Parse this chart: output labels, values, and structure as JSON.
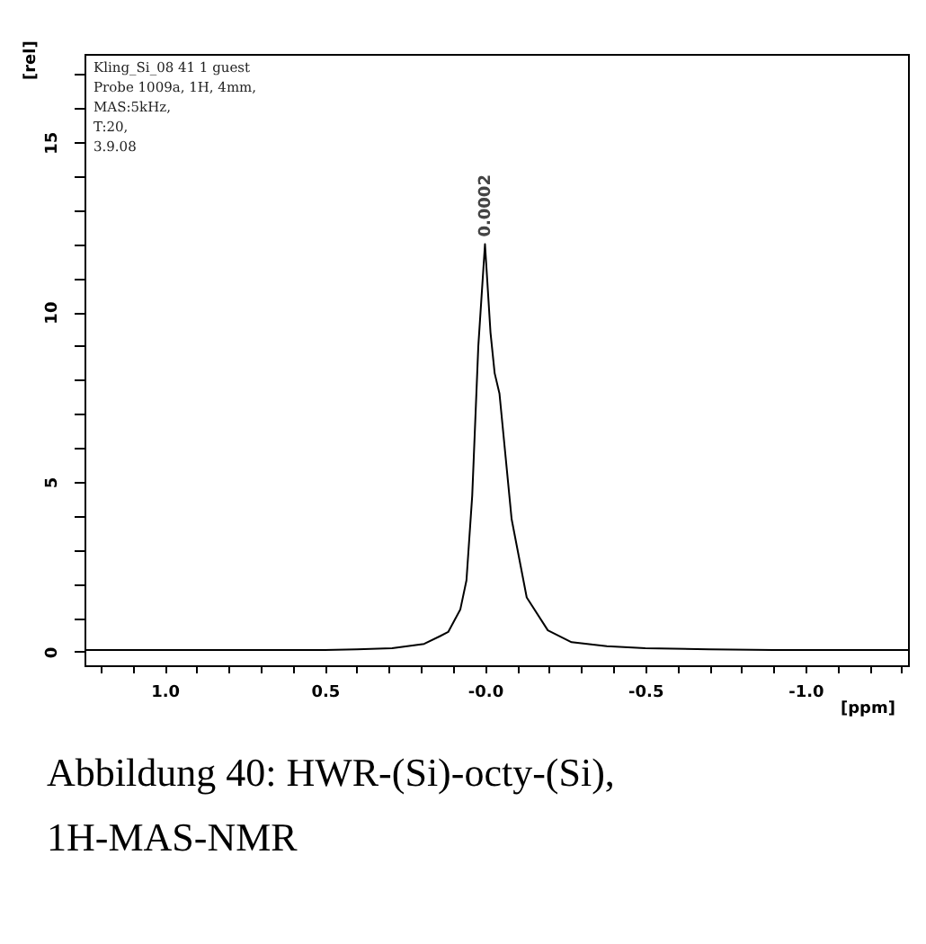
{
  "chart_data": {
    "type": "line",
    "title": "Abbildung 40: HWR-(Si)-octy-(Si), 1H-MAS-NMR",
    "xlabel": "[ppm]",
    "ylabel": "[rel]",
    "annotations": [
      "Kling_Si_08 41 1 guest",
      "Probe 1009a, 1H, 4mm,",
      "MAS:5kHz,",
      "T:20,",
      "3.9.08",
      {
        "text": "0.0002",
        "x": 0.0002,
        "y": 12
      }
    ],
    "x": [
      1.25,
      1.0,
      0.8,
      0.6,
      0.5,
      0.4,
      0.29,
      0.19,
      0.14,
      0.115,
      0.077,
      0.058,
      0.04,
      0.021,
      0.0002,
      -0.017,
      -0.03,
      -0.045,
      -0.083,
      -0.13,
      -0.196,
      -0.27,
      -0.38,
      -0.5,
      -0.7,
      -0.9,
      -1.1,
      -1.32
    ],
    "series": [
      {
        "color": "#000000",
        "values": [
          0.05,
          0.05,
          0.05,
          0.05,
          0.05,
          0.07,
          0.1,
          0.23,
          0.46,
          0.58,
          1.25,
          2.1,
          4.6,
          9.0,
          12.0,
          9.4,
          8.2,
          7.6,
          3.9,
          1.6,
          0.63,
          0.28,
          0.16,
          0.1,
          0.07,
          0.05,
          0.05,
          0.05
        ]
      }
    ],
    "xlim": [
      1.25,
      -1.32
    ],
    "ylim": [
      -0.4,
      17.6
    ],
    "xticks": [
      {
        "value": 1.2,
        "label": null
      },
      {
        "value": 1.1,
        "label": null
      },
      {
        "value": 1.0,
        "label": "1.0"
      },
      {
        "value": 0.9,
        "label": null
      },
      {
        "value": 0.8,
        "label": null
      },
      {
        "value": 0.7,
        "label": null
      },
      {
        "value": 0.6,
        "label": null
      },
      {
        "value": 0.5,
        "label": "0.5"
      },
      {
        "value": 0.4,
        "label": null
      },
      {
        "value": 0.3,
        "label": null
      },
      {
        "value": 0.2,
        "label": null
      },
      {
        "value": 0.1,
        "label": null
      },
      {
        "value": 0,
        "label": "-0.0"
      },
      {
        "value": -0.1,
        "label": null
      },
      {
        "value": -0.2,
        "label": null
      },
      {
        "value": -0.3,
        "label": null
      },
      {
        "value": -0.4,
        "label": null
      },
      {
        "value": -0.5,
        "label": "-0.5"
      },
      {
        "value": -0.6,
        "label": null
      },
      {
        "value": -0.7,
        "label": null
      },
      {
        "value": -0.8,
        "label": null
      },
      {
        "value": -0.9,
        "label": null
      },
      {
        "value": -1.0,
        "label": "-1.0"
      },
      {
        "value": -1.1,
        "label": null
      },
      {
        "value": -1.2,
        "label": null
      },
      {
        "value": -1.3,
        "label": null
      }
    ],
    "yticks": [
      0,
      {
        "value": 1,
        "label": null
      },
      {
        "value": 2,
        "label": null
      },
      {
        "value": 3,
        "label": null
      },
      {
        "value": 4,
        "label": null
      },
      5,
      {
        "value": 6,
        "label": null
      },
      {
        "value": 7,
        "label": null
      },
      {
        "value": 8,
        "label": null
      },
      {
        "value": 9,
        "label": null
      },
      10,
      {
        "value": 11,
        "label": null
      },
      {
        "value": 12,
        "label": null
      },
      {
        "value": 13,
        "label": null
      },
      {
        "value": 14,
        "label": null
      },
      15,
      {
        "value": 16,
        "label": null
      },
      {
        "value": 17,
        "label": null
      }
    ],
    "grid": false,
    "marker": "none",
    "line_style": "solid"
  }
}
